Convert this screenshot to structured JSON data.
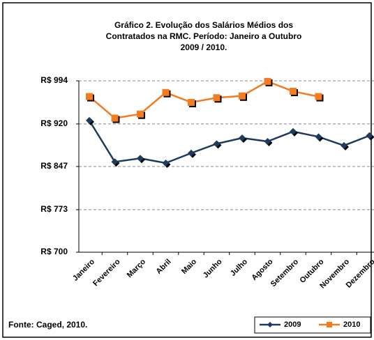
{
  "chart_data": {
    "type": "line",
    "title": [
      "Gráfico 2. Evolução dos Salários Médios dos",
      "Contratados na RMC.  Período: Janeiro a Outubro",
      "2009 / 2010."
    ],
    "source": "Fonte: Caged,  2010.",
    "categories": [
      "Janeiro",
      "Fevereiro",
      "Março",
      "Abril",
      "Maio",
      "Junho",
      "Julho",
      "Agosto",
      "Setembro",
      "Outubro",
      "Novembro",
      "Dezembro"
    ],
    "series": [
      {
        "name": "2009",
        "color": "#1f3a5f",
        "values": [
          926,
          855,
          861,
          853,
          870,
          886,
          896,
          890,
          907,
          898,
          883,
          900
        ]
      },
      {
        "name": "2010",
        "color": "#f47b20",
        "values": [
          967,
          930,
          937,
          974,
          957,
          965,
          968,
          993,
          976,
          967,
          null,
          null
        ]
      }
    ],
    "ylim": [
      700,
      994
    ],
    "yticks": [
      {
        "value": 700,
        "label": "R$ 700"
      },
      {
        "value": 773,
        "label": "R$ 773"
      },
      {
        "value": 847,
        "label": "R$ 847"
      },
      {
        "value": 920,
        "label": "R$ 920"
      },
      {
        "value": 994,
        "label": "R$ 994"
      }
    ],
    "grid": true
  }
}
